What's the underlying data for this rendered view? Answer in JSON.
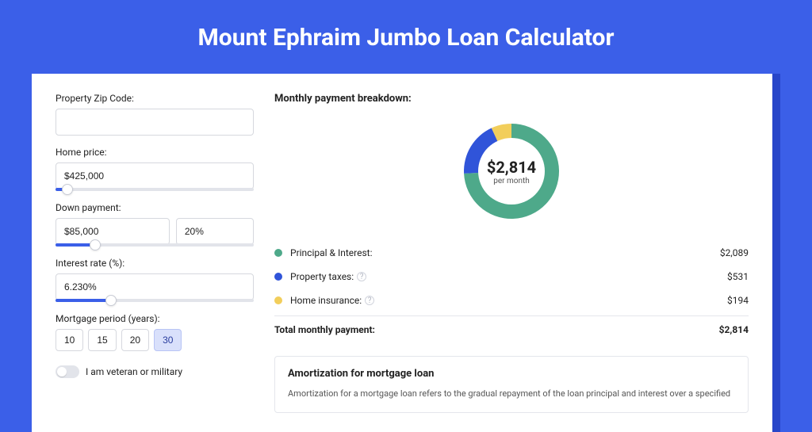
{
  "page": {
    "title": "Mount Ephraim Jumbo Loan Calculator",
    "background_color": "#3b5fe8",
    "shadow_color": "#2846c9",
    "card_background": "#ffffff"
  },
  "form": {
    "zip_label": "Property Zip Code:",
    "zip_value": "",
    "home_price_label": "Home price:",
    "home_price_value": "$425,000",
    "home_price_slider_pct": 6,
    "down_payment_label": "Down payment:",
    "down_payment_value": "$85,000",
    "down_payment_pct_value": "20%",
    "down_payment_slider_pct": 20,
    "interest_label": "Interest rate (%):",
    "interest_value": "6.230%",
    "interest_slider_pct": 28,
    "period_label": "Mortgage period (years):",
    "period_options": [
      "10",
      "15",
      "20",
      "30"
    ],
    "period_selected": "30",
    "veteran_label": "I am veteran or military",
    "veteran_enabled": false
  },
  "breakdown": {
    "title": "Monthly payment breakdown:",
    "donut": {
      "value": "$2,814",
      "sub": "per month",
      "segments": [
        {
          "color": "#4ea98a",
          "value": 2089
        },
        {
          "color": "#3054d9",
          "value": 531
        },
        {
          "color": "#f2ce5b",
          "value": 194
        }
      ]
    },
    "rows": [
      {
        "label": "Principal & Interest:",
        "value": "$2,089",
        "color": "#4ea98a",
        "info": false
      },
      {
        "label": "Property taxes:",
        "value": "$531",
        "color": "#3054d9",
        "info": true
      },
      {
        "label": "Home insurance:",
        "value": "$194",
        "color": "#f2ce5b",
        "info": true
      }
    ],
    "total_label": "Total monthly payment:",
    "total_value": "$2,814"
  },
  "amortization": {
    "title": "Amortization for mortgage loan",
    "text": "Amortization for a mortgage loan refers to the gradual repayment of the loan principal and interest over a specified"
  }
}
